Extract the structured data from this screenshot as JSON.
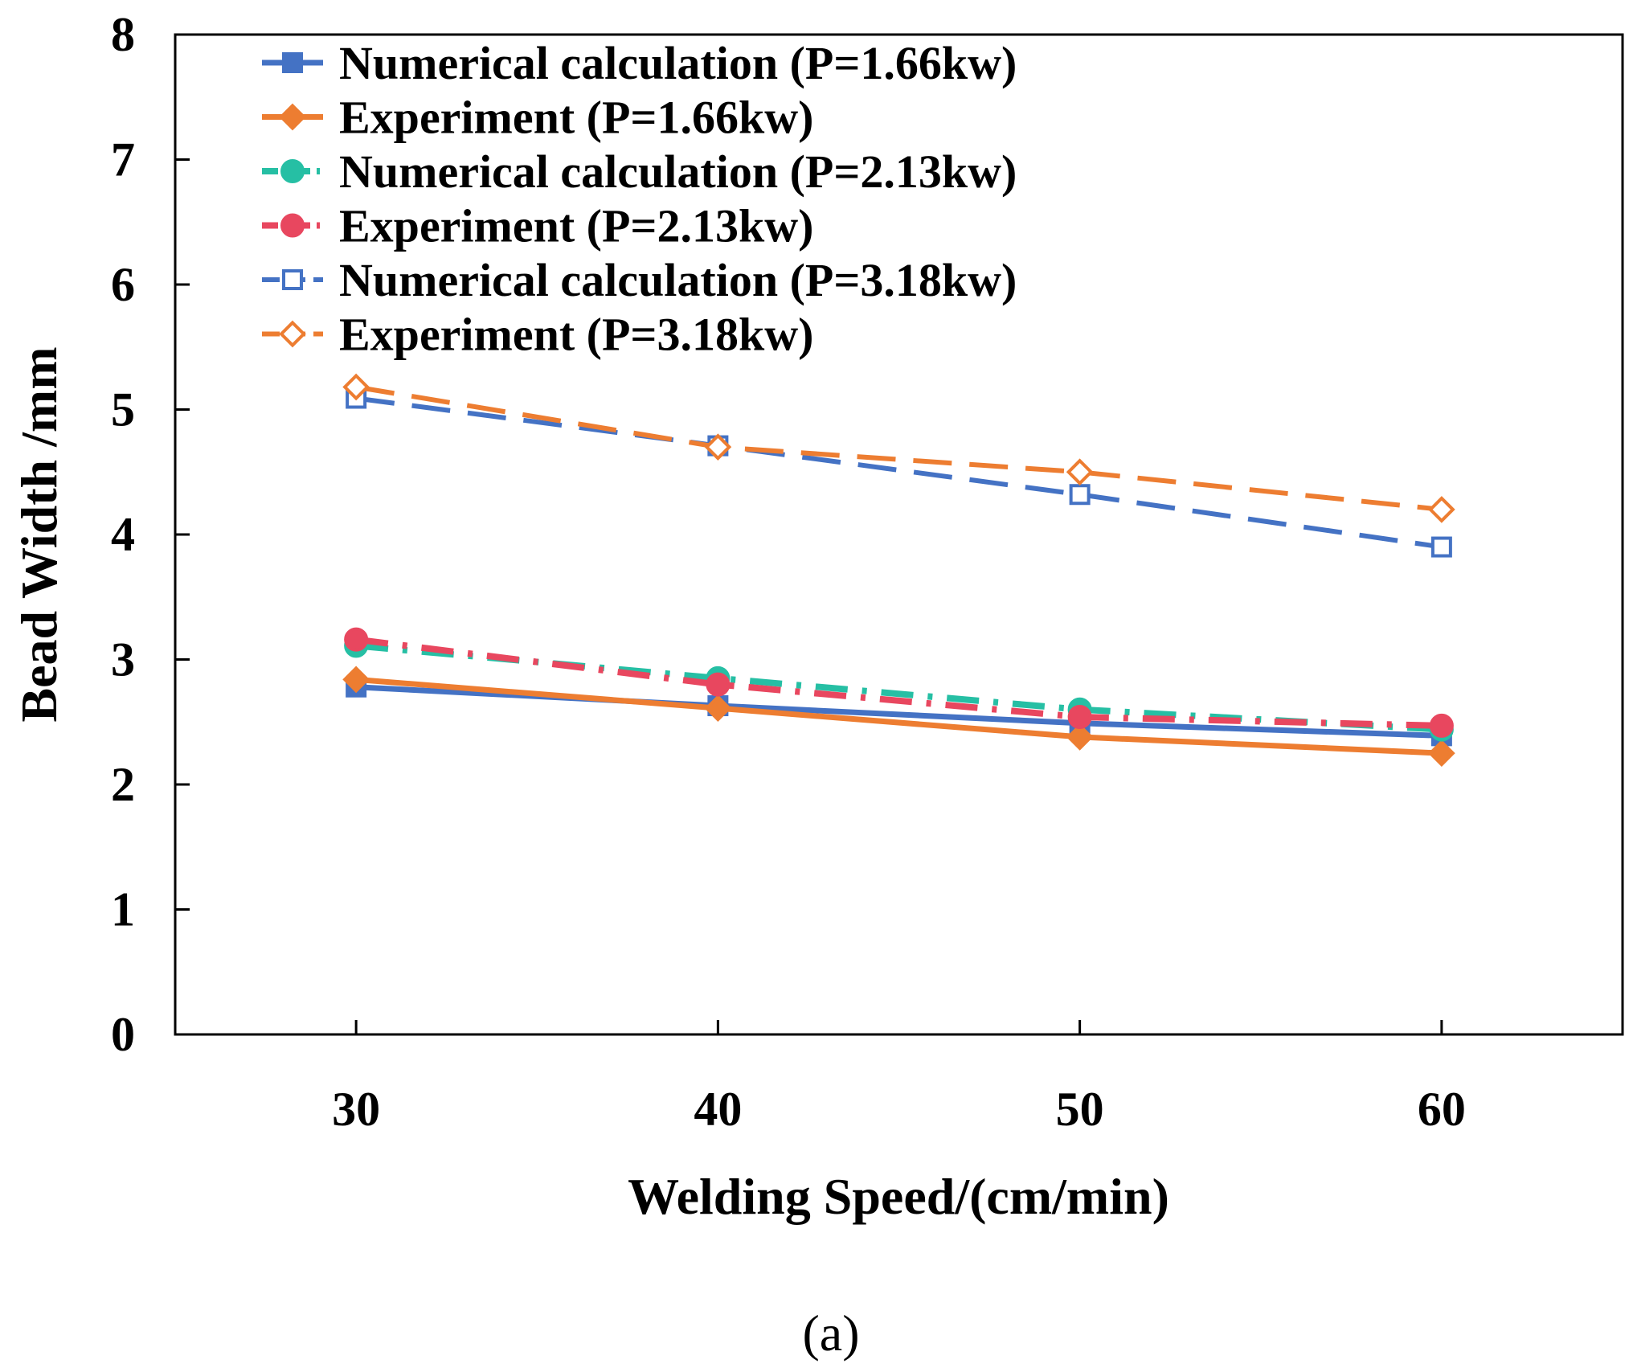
{
  "chart_data": {
    "type": "line",
    "title": "",
    "xlabel": "Welding Speed/(cm/min)",
    "ylabel": "Bead Width /mm",
    "caption": "(a)",
    "x": [
      30,
      40,
      50,
      60
    ],
    "xticks": [
      "30",
      "40",
      "50",
      "60"
    ],
    "xlim": [
      25,
      65
    ],
    "ylim": [
      0,
      8
    ],
    "yticks": [
      "0",
      "1",
      "2",
      "3",
      "4",
      "5",
      "6",
      "7",
      "8"
    ],
    "grid": false,
    "legend_position": "top-left",
    "series": [
      {
        "name": "Numerical calculation (P=1.66kw)",
        "values": [
          2.78,
          2.63,
          2.49,
          2.39
        ],
        "color": "#4472C4",
        "marker": "square-filled",
        "line": "solid"
      },
      {
        "name": "Experiment (P=1.66kw)",
        "values": [
          2.84,
          2.61,
          2.38,
          2.25
        ],
        "color": "#ED7D31",
        "marker": "diamond-filled",
        "line": "solid"
      },
      {
        "name": "Numerical calculation (P=2.13kw)",
        "values": [
          3.11,
          2.85,
          2.6,
          2.44
        ],
        "color": "#26BFA4",
        "marker": "circle-filled",
        "line": "dashdot"
      },
      {
        "name": "Experiment (P=2.13kw)",
        "values": [
          3.16,
          2.8,
          2.54,
          2.47
        ],
        "color": "#E8475F",
        "marker": "circle-filled",
        "line": "dashdot"
      },
      {
        "name": "Numerical calculation (P=3.18kw)",
        "values": [
          5.09,
          4.71,
          4.32,
          3.9
        ],
        "color": "#4472C4",
        "marker": "square-open",
        "line": "dashed"
      },
      {
        "name": "Experiment (P=3.18kw)",
        "values": [
          5.18,
          4.7,
          4.5,
          4.2
        ],
        "color": "#ED7D31",
        "marker": "diamond-open",
        "line": "dashed"
      }
    ]
  }
}
